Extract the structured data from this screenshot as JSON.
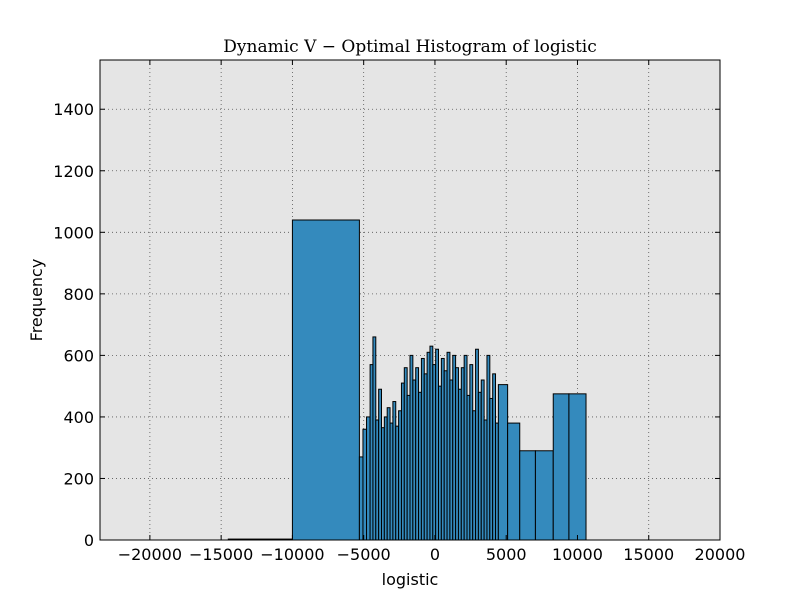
{
  "chart_data": {
    "type": "bar",
    "title": "Dynamic V − Optimal Histogram of logistic",
    "xlabel": "logistic",
    "ylabel": "Frequency",
    "xlim": [
      -23500,
      20000
    ],
    "ylim": [
      0,
      1560
    ],
    "x_ticks": [
      -20000,
      -15000,
      -10000,
      -5000,
      0,
      5000,
      10000,
      15000,
      20000
    ],
    "y_ticks": [
      0,
      200,
      400,
      600,
      800,
      1000,
      1200,
      1400
    ],
    "grid": true,
    "legend": "none",
    "colors": {
      "bar": "#348abd",
      "edge": "#000000",
      "plot_background": "#e5e5e5"
    },
    "bins": [
      {
        "x0": -14500,
        "x1": -10000,
        "count": 3
      },
      {
        "x0": -10000,
        "x1": -5300,
        "count": 1040
      },
      {
        "x0": -5300,
        "x1": -5050,
        "count": 270
      },
      {
        "x0": -5050,
        "x1": -4800,
        "count": 360
      },
      {
        "x0": -4800,
        "x1": -4550,
        "count": 400
      },
      {
        "x0": -4550,
        "x1": -4350,
        "count": 570
      },
      {
        "x0": -4350,
        "x1": -4150,
        "count": 660
      },
      {
        "x0": -4150,
        "x1": -3950,
        "count": 390
      },
      {
        "x0": -3950,
        "x1": -3750,
        "count": 490
      },
      {
        "x0": -3750,
        "x1": -3550,
        "count": 365
      },
      {
        "x0": -3550,
        "x1": -3350,
        "count": 400
      },
      {
        "x0": -3350,
        "x1": -3150,
        "count": 430
      },
      {
        "x0": -3150,
        "x1": -2950,
        "count": 380
      },
      {
        "x0": -2950,
        "x1": -2750,
        "count": 450
      },
      {
        "x0": -2750,
        "x1": -2550,
        "count": 370
      },
      {
        "x0": -2550,
        "x1": -2350,
        "count": 420
      },
      {
        "x0": -2350,
        "x1": -2150,
        "count": 510
      },
      {
        "x0": -2150,
        "x1": -1950,
        "count": 560
      },
      {
        "x0": -1950,
        "x1": -1750,
        "count": 470
      },
      {
        "x0": -1750,
        "x1": -1550,
        "count": 600
      },
      {
        "x0": -1550,
        "x1": -1350,
        "count": 520
      },
      {
        "x0": -1350,
        "x1": -1150,
        "count": 560
      },
      {
        "x0": -1150,
        "x1": -950,
        "count": 480
      },
      {
        "x0": -950,
        "x1": -750,
        "count": 590
      },
      {
        "x0": -750,
        "x1": -550,
        "count": 540
      },
      {
        "x0": -550,
        "x1": -350,
        "count": 610
      },
      {
        "x0": -350,
        "x1": -150,
        "count": 630
      },
      {
        "x0": -150,
        "x1": 50,
        "count": 570
      },
      {
        "x0": 50,
        "x1": 250,
        "count": 620
      },
      {
        "x0": 250,
        "x1": 450,
        "count": 500
      },
      {
        "x0": 450,
        "x1": 650,
        "count": 590
      },
      {
        "x0": 650,
        "x1": 850,
        "count": 550
      },
      {
        "x0": 850,
        "x1": 1050,
        "count": 610
      },
      {
        "x0": 1050,
        "x1": 1250,
        "count": 520
      },
      {
        "x0": 1250,
        "x1": 1450,
        "count": 600
      },
      {
        "x0": 1450,
        "x1": 1650,
        "count": 560
      },
      {
        "x0": 1650,
        "x1": 1850,
        "count": 490
      },
      {
        "x0": 1850,
        "x1": 2050,
        "count": 560
      },
      {
        "x0": 2050,
        "x1": 2250,
        "count": 600
      },
      {
        "x0": 2250,
        "x1": 2450,
        "count": 470
      },
      {
        "x0": 2450,
        "x1": 2650,
        "count": 570
      },
      {
        "x0": 2650,
        "x1": 2850,
        "count": 420
      },
      {
        "x0": 2850,
        "x1": 3050,
        "count": 620
      },
      {
        "x0": 3050,
        "x1": 3250,
        "count": 480
      },
      {
        "x0": 3250,
        "x1": 3450,
        "count": 520
      },
      {
        "x0": 3450,
        "x1": 3650,
        "count": 390
      },
      {
        "x0": 3650,
        "x1": 3850,
        "count": 600
      },
      {
        "x0": 3850,
        "x1": 4050,
        "count": 460
      },
      {
        "x0": 4050,
        "x1": 4250,
        "count": 540
      },
      {
        "x0": 4250,
        "x1": 4450,
        "count": 380
      },
      {
        "x0": 4450,
        "x1": 5100,
        "count": 505
      },
      {
        "x0": 5100,
        "x1": 5950,
        "count": 380
      },
      {
        "x0": 5950,
        "x1": 7050,
        "count": 290
      },
      {
        "x0": 7050,
        "x1": 8300,
        "count": 290
      },
      {
        "x0": 8300,
        "x1": 9400,
        "count": 475
      },
      {
        "x0": 9400,
        "x1": 10600,
        "count": 475
      }
    ]
  }
}
